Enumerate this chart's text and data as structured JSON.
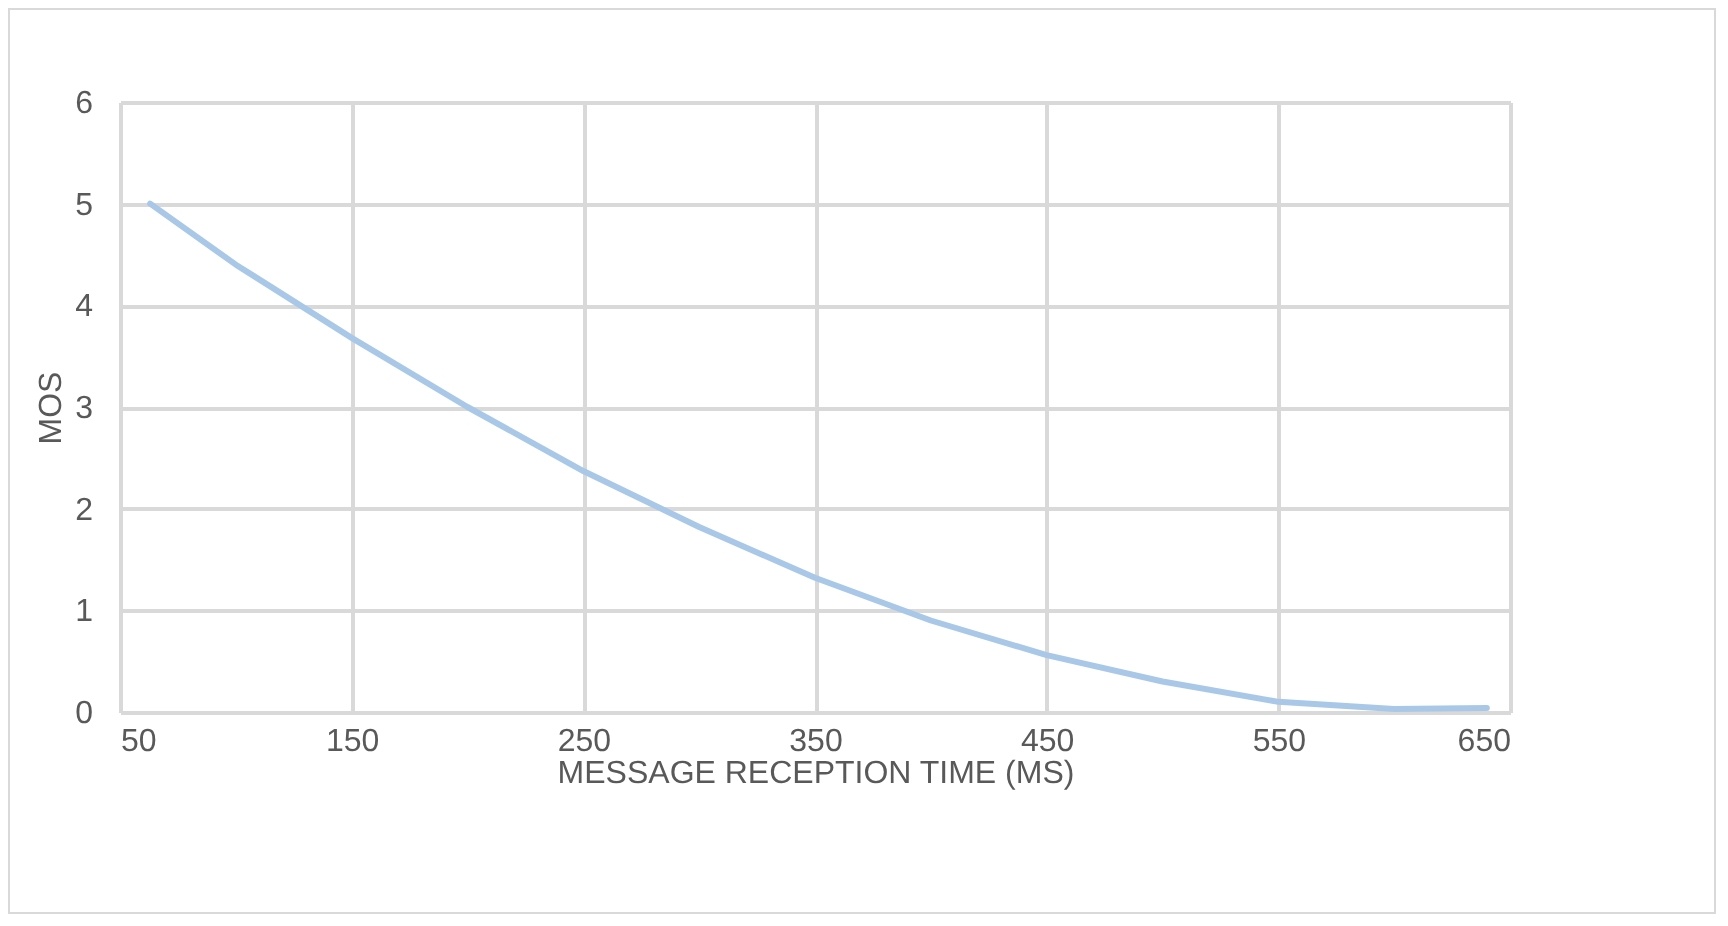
{
  "chart_data": {
    "type": "line",
    "xlabel": "MESSAGE RECEPTION TIME (MS)",
    "ylabel": "MOS",
    "x": [
      63,
      100,
      150,
      200,
      250,
      300,
      350,
      400,
      450,
      500,
      550,
      600,
      640
    ],
    "series": [
      {
        "color": "#a9c8e8",
        "values": [
          5,
          4.4,
          3.68,
          3.0,
          2.37,
          1.82,
          1.32,
          0.9,
          0.56,
          0.3,
          0.1,
          0.03,
          0.04
        ]
      }
    ],
    "xlim": [
      50,
      650
    ],
    "xticks": [
      50,
      150,
      250,
      350,
      450,
      550,
      650
    ],
    "ylim": [
      0,
      6
    ],
    "yticks": [
      0,
      1,
      2,
      3,
      4,
      5,
      6
    ],
    "grid": true,
    "marker": "none",
    "line_style": "solid"
  }
}
